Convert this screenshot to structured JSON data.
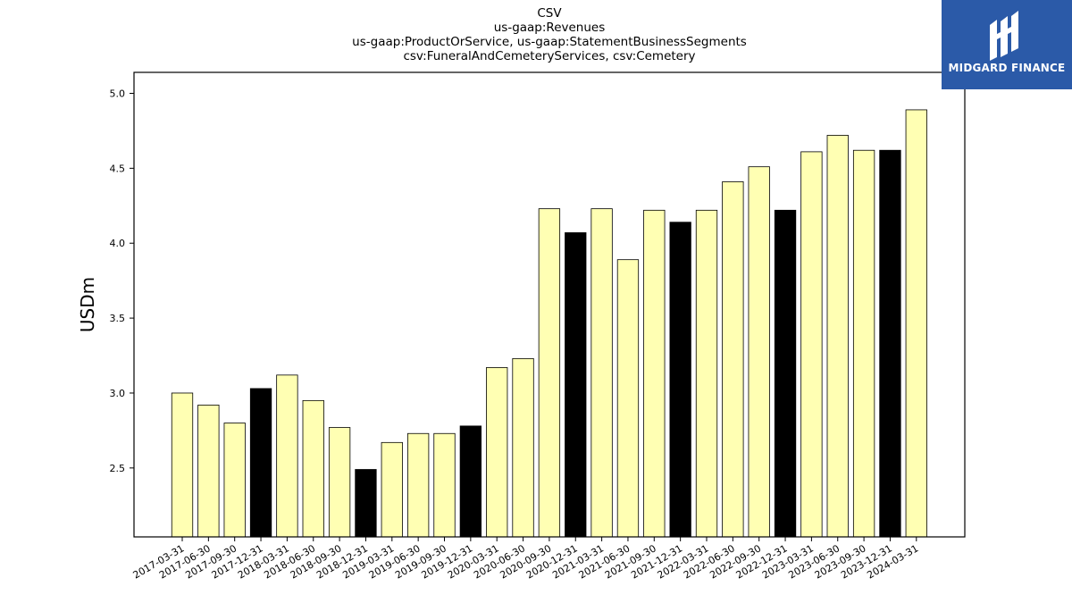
{
  "chart_data": {
    "type": "bar",
    "title_lines": [
      "CSV",
      "us-gaap:Revenues",
      "us-gaap:ProductOrService, us-gaap:StatementBusinessSegments",
      "csv:FuneralAndCemeteryServices, csv:Cemetery"
    ],
    "ylabel": "USDm",
    "ylim": [
      2.04,
      5.14
    ],
    "yticks": [
      "2.5",
      "3.0",
      "3.5",
      "4.0",
      "4.5",
      "5.0"
    ],
    "categories": [
      "2017-03-31",
      "2017-06-30",
      "2017-09-30",
      "2017-12-31",
      "2018-03-31",
      "2018-06-30",
      "2018-09-30",
      "2018-12-31",
      "2019-03-31",
      "2019-06-30",
      "2019-09-30",
      "2019-12-31",
      "2020-03-31",
      "2020-06-30",
      "2020-09-30",
      "2020-12-31",
      "2021-03-31",
      "2021-06-30",
      "2021-09-30",
      "2021-12-31",
      "2022-03-31",
      "2022-06-30",
      "2022-09-30",
      "2022-12-31",
      "2023-03-31",
      "2023-06-30",
      "2023-09-30",
      "2023-12-31",
      "2024-03-31"
    ],
    "values": [
      3.0,
      2.92,
      2.8,
      3.03,
      3.12,
      2.95,
      2.77,
      2.49,
      2.67,
      2.73,
      2.73,
      2.78,
      3.17,
      3.23,
      4.23,
      4.07,
      4.23,
      3.89,
      4.22,
      4.14,
      4.22,
      4.41,
      4.51,
      4.22,
      4.61,
      4.72,
      4.62,
      4.62,
      4.89
    ],
    "year_end_flags": [
      0,
      0,
      0,
      1,
      0,
      0,
      0,
      1,
      0,
      0,
      0,
      1,
      0,
      0,
      0,
      1,
      0,
      0,
      0,
      1,
      0,
      0,
      0,
      1,
      0,
      0,
      0,
      1,
      0
    ],
    "colors": {
      "bar": "#ffffb3",
      "year_end_bar": "#000000",
      "edge": "#000000"
    },
    "grid": false
  },
  "logo": {
    "text": "MIDGARD FINANCE",
    "background": "#2b5aa8"
  }
}
